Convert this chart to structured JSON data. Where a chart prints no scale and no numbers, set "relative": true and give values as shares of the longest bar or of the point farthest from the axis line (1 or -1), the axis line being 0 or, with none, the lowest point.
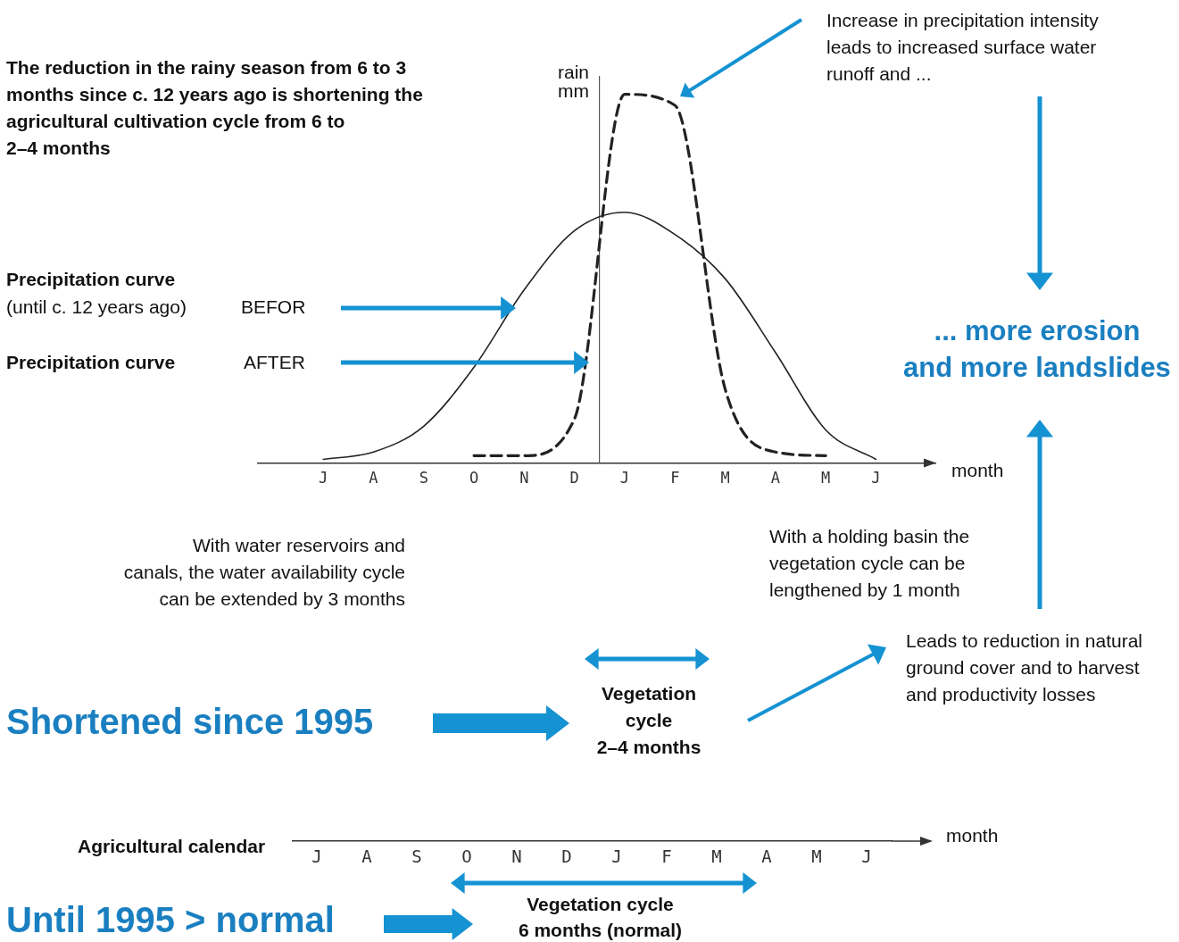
{
  "chart_data": [
    {
      "type": "line",
      "relative": true,
      "ylabel": "rain\nmm",
      "xlabel": "month",
      "categories": [
        "J",
        "A",
        "S",
        "O",
        "N",
        "D",
        "J",
        "F",
        "M",
        "A",
        "M",
        "J"
      ],
      "series": [
        {
          "color": "#222222",
          "line_style": "solid",
          "values": [
            0.01,
            0.03,
            0.1,
            0.26,
            0.47,
            0.63,
            0.68,
            0.62,
            0.5,
            0.3,
            0.09,
            0.01
          ]
        },
        {
          "color": "#222222",
          "line_style": "dashed",
          "values": [
            null,
            null,
            null,
            0.02,
            0.02,
            0.12,
            1,
            0.97,
            0.2,
            0.03,
            0.02,
            null
          ]
        }
      ],
      "annotations": [
        "The reduction in the rainy season from 6 to 3\nmonths since c. 12 years ago is shortening the\nagricultural cultivation cycle from 6 to\n2–4 months",
        "Increase in precipitation intensity\nleads to increased surface water\nrunoff and ...",
        "Precipitation curve",
        "(until c. 12 years ago)",
        "BEFOR",
        "Precipitation curve",
        "AFTER",
        "... more erosion\nand more landslides",
        "With water reservoirs and\ncanals, the water availability cycle\ncan be extended by 3 months",
        "With a holding basin the\nvegetation cycle can be\nlengthened by 1 month",
        "Leads to reduction in natural\nground cover and to harvest\nand productivity losses",
        "Shortened since 1995",
        "Vegetation\ncycle\n2–4 months"
      ]
    },
    {
      "type": "other",
      "title": "Agricultural calendar",
      "xlabel": "month",
      "categories": [
        "J",
        "A",
        "S",
        "O",
        "N",
        "D",
        "J",
        "F",
        "M",
        "A",
        "M",
        "J"
      ],
      "annotations": [
        "Vegetation cycle\n6 months (normal)",
        "Until 1995 > normal"
      ]
    }
  ]
}
